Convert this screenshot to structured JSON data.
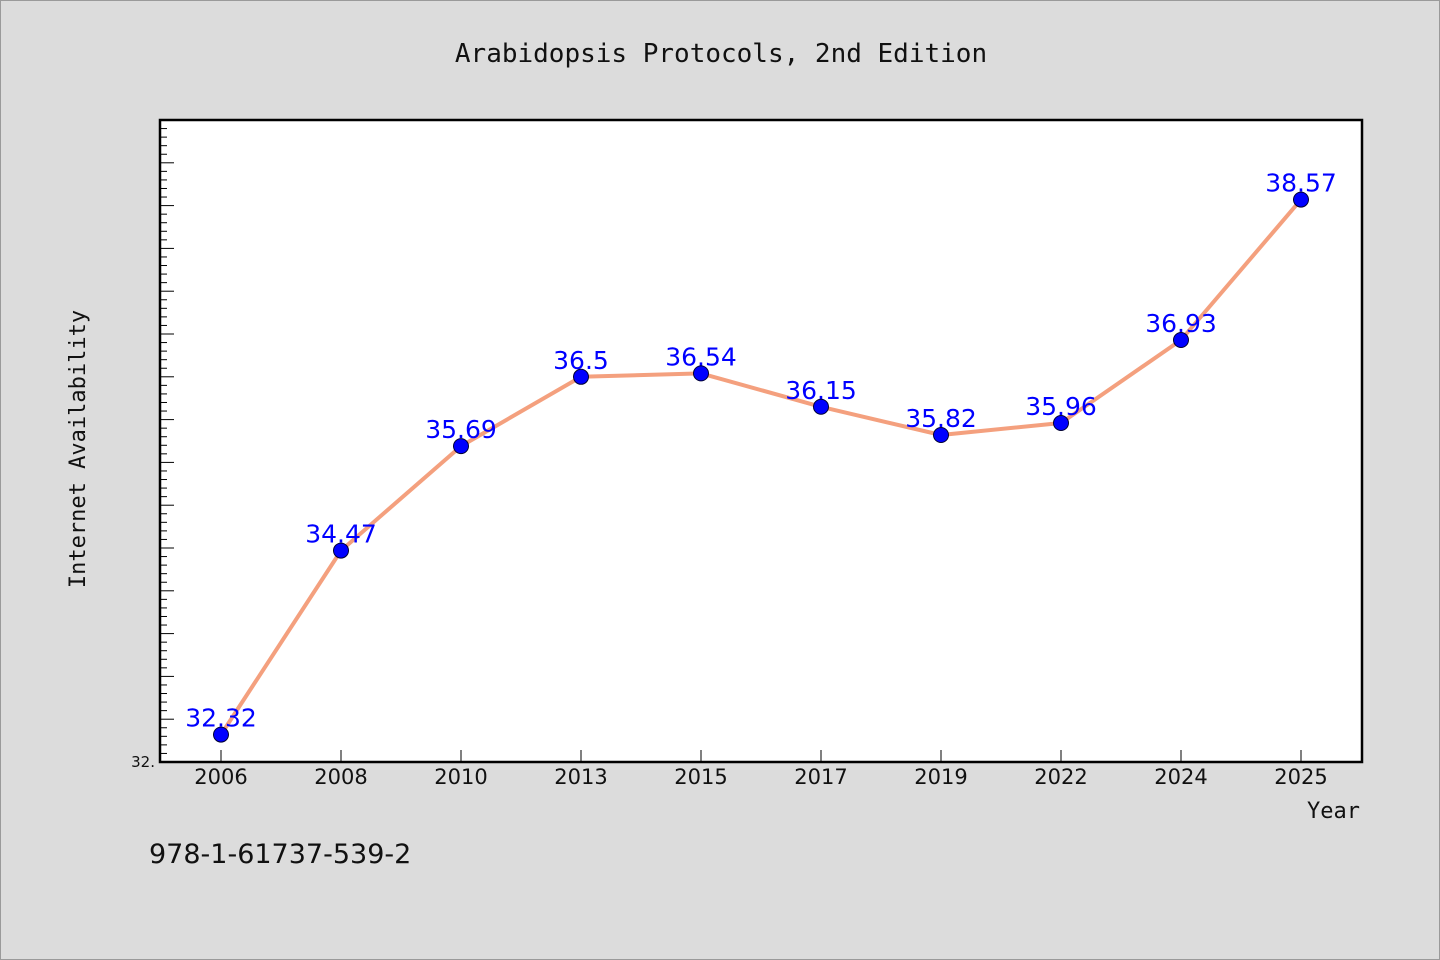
{
  "chart_data": {
    "type": "line",
    "title": "Arabidopsis Protocols, 2nd Edition",
    "xlabel": "Year",
    "ylabel": "Internet Availability",
    "categories": [
      "2006",
      "2008",
      "2010",
      "2013",
      "2015",
      "2017",
      "2019",
      "2022",
      "2024",
      "2025"
    ],
    "values": [
      32.32,
      34.47,
      35.69,
      36.5,
      36.54,
      36.15,
      35.82,
      35.96,
      36.93,
      38.57
    ],
    "data_labels": [
      "32.32",
      "34.47",
      "35.69",
      "36.5",
      "36.54",
      "36.15",
      "35.82",
      "35.96",
      "36.93",
      "38.57"
    ],
    "ytick_labels": [
      "32."
    ],
    "ylim": [
      32.0,
      39.5
    ],
    "grid": false,
    "line_color": "#f4a07e",
    "marker_color": "#0000ff",
    "label_color": "#0000ff",
    "background_color": "#dcdcdc",
    "plot_background": "#ffffff"
  },
  "footer": {
    "text": "978-1-61737-539-2"
  }
}
